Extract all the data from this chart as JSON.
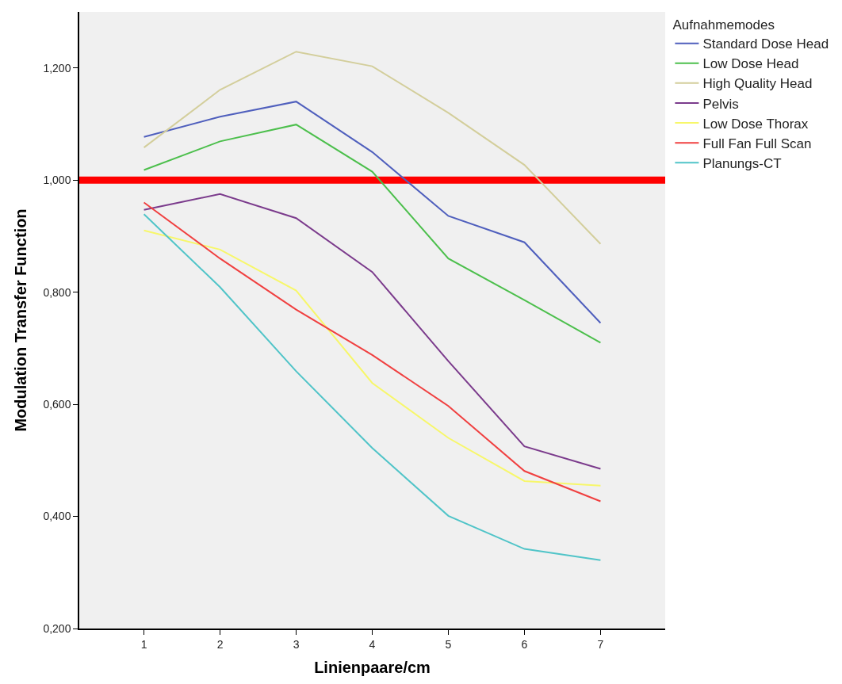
{
  "chart_data": {
    "type": "line",
    "xlabel": "Linienpaare/cm",
    "ylabel": "Modulation Transfer Function",
    "legend_title": "Aufnahmemodes",
    "x": [
      1,
      2,
      3,
      4,
      5,
      6,
      7
    ],
    "series": [
      {
        "name": "Standard Dose Head",
        "color": "#4f5fbd",
        "values": [
          1.077,
          1.113,
          1.14,
          1.05,
          0.936,
          0.889,
          0.745
        ]
      },
      {
        "name": "Low Dose Head",
        "color": "#4cbf4c",
        "values": [
          1.018,
          1.069,
          1.099,
          1.015,
          0.86,
          0.786,
          0.71
        ]
      },
      {
        "name": "High Quality Head",
        "color": "#d3ce9b",
        "values": [
          1.058,
          1.161,
          1.229,
          1.203,
          1.12,
          1.027,
          0.886
        ]
      },
      {
        "name": "Pelvis",
        "color": "#7b3b8c",
        "values": [
          0.947,
          0.975,
          0.932,
          0.836,
          0.677,
          0.525,
          0.485
        ]
      },
      {
        "name": "Low Dose Thorax",
        "color": "#f7f76a",
        "values": [
          0.91,
          0.876,
          0.803,
          0.638,
          0.54,
          0.463,
          0.455
        ]
      },
      {
        "name": "Full Fan Full Scan",
        "color": "#f04040",
        "values": [
          0.96,
          0.86,
          0.769,
          0.688,
          0.597,
          0.481,
          0.427
        ]
      },
      {
        "name": "Planungs-CT",
        "color": "#50c4c8",
        "values": [
          0.939,
          0.809,
          0.659,
          0.522,
          0.401,
          0.342,
          0.322
        ]
      }
    ],
    "ref_lines": [
      {
        "axis": "y",
        "value": 1.0,
        "color": "#ff0000"
      }
    ],
    "xlim": [
      0.15,
      7.85
    ],
    "xticks": [
      1,
      2,
      3,
      4,
      5,
      6,
      7
    ],
    "ylim": [
      0.2,
      1.3
    ],
    "yticks": [
      {
        "value": 0.2,
        "label": "0,200"
      },
      {
        "value": 0.4,
        "label": "0,400"
      },
      {
        "value": 0.6,
        "label": "0,600"
      },
      {
        "value": 0.8,
        "label": "0,800"
      },
      {
        "value": 1.0,
        "label": "1,000"
      },
      {
        "value": 1.2,
        "label": "1,200"
      }
    ],
    "grid": false,
    "legend": "top right",
    "marker": "none",
    "line_style": "solid"
  }
}
